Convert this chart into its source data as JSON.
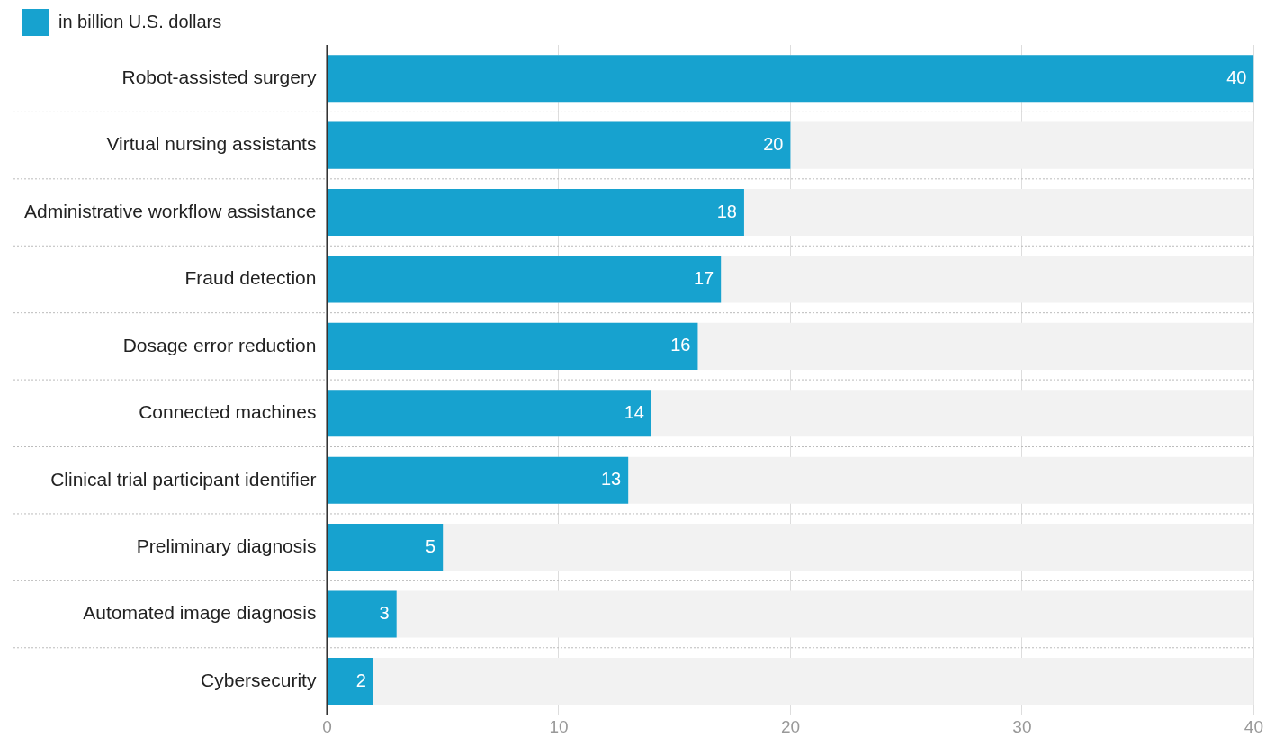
{
  "chart_data": {
    "type": "bar",
    "orientation": "horizontal",
    "categories": [
      "Robot-assisted surgery",
      "Virtual nursing assistants",
      "Administrative workflow assistance",
      "Fraud detection",
      "Dosage error reduction",
      "Connected machines",
      "Clinical trial participant identifier",
      "Preliminary diagnosis",
      "Automated image diagnosis",
      "Cybersecurity"
    ],
    "series": [
      {
        "name": "in billion U.S. dollars",
        "color": "#17a2cf",
        "values": [
          40,
          20,
          18,
          17,
          16,
          14,
          13,
          5,
          3,
          2
        ]
      }
    ],
    "xlim": [
      0,
      40
    ],
    "xticks": [
      0,
      10,
      20,
      30,
      40
    ],
    "grid": "x",
    "legend": "top left",
    "data_labels": true
  }
}
